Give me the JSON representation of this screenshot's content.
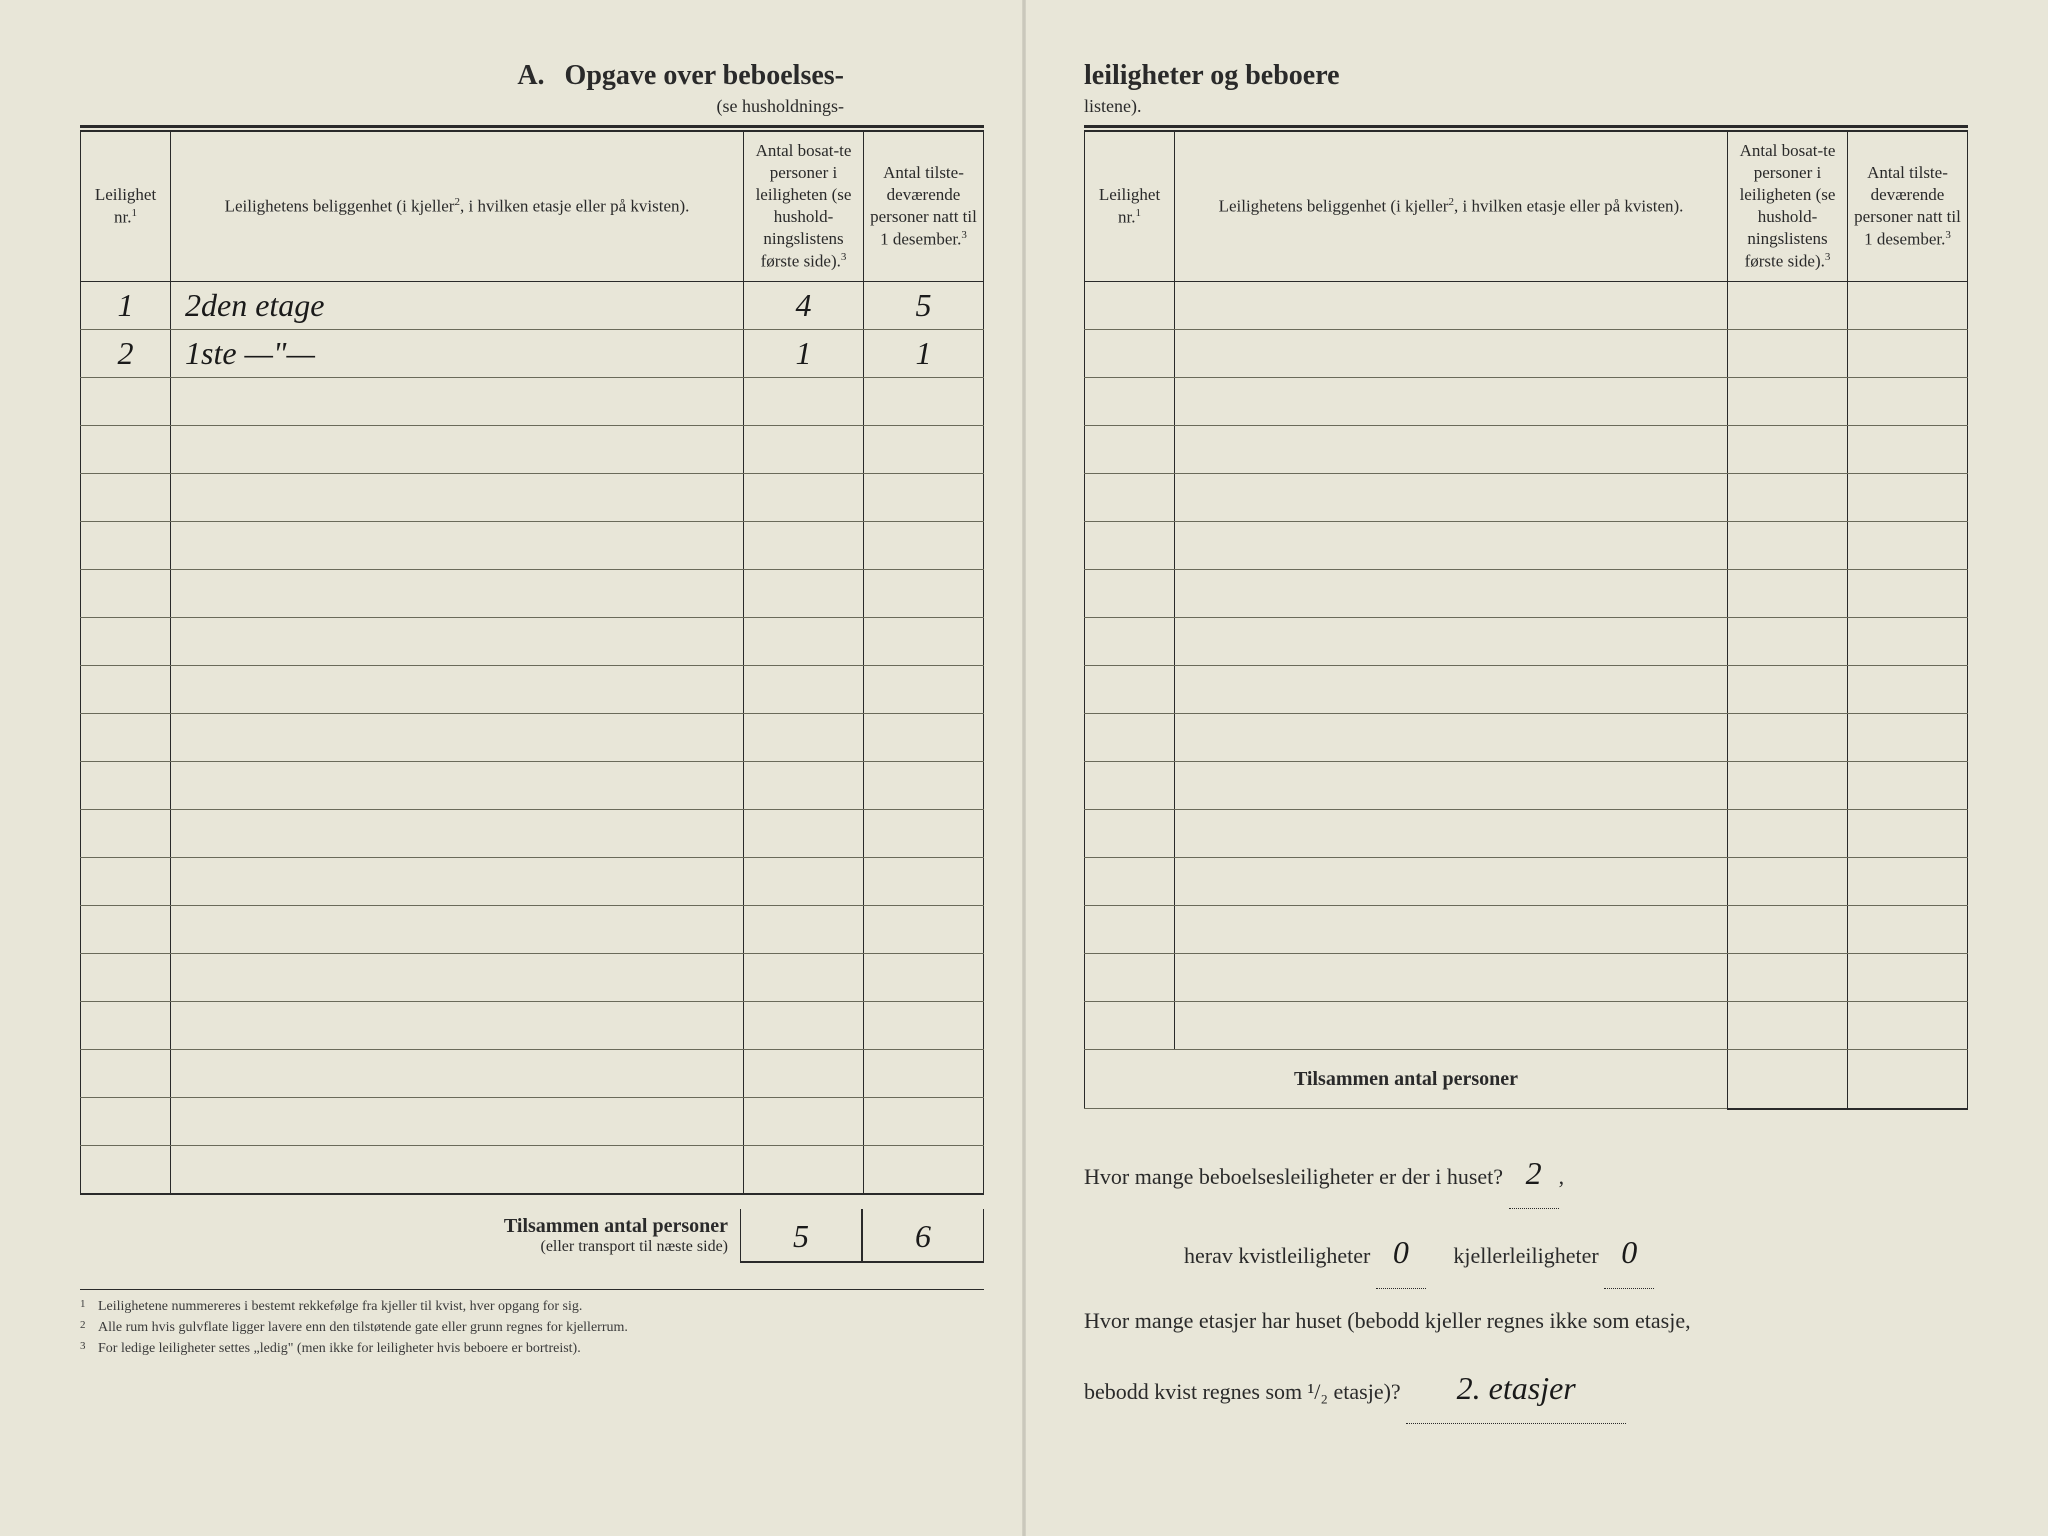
{
  "colors": {
    "paper": "#e8e6d8",
    "ink": "#2a2a2a",
    "rule": "#6a6a5a",
    "handwriting": "#1a1a1a"
  },
  "left": {
    "sectionLetter": "A.",
    "title": "Opgave over beboelses-",
    "subtitle": "(se husholdnings-",
    "headers": {
      "col1": "Leilighet nr.",
      "col1_sup": "1",
      "col2": "Leilighetens beliggenhet (i kjeller",
      "col2_sup": "2",
      "col2b": ", i hvilken etasje eller på kvisten).",
      "col3": "Antal bosat-te personer i leiligheten (se hushold-ningslistens første side).",
      "col3_sup": "3",
      "col4": "Antal tilste-deværende personer natt til 1 desember.",
      "col4_sup": "3"
    },
    "rows": [
      {
        "nr": "1",
        "loc": "2den etage",
        "bosatte": "4",
        "tilstede": "5"
      },
      {
        "nr": "2",
        "loc": "1ste —\"—",
        "bosatte": "1",
        "tilstede": "1"
      }
    ],
    "emptyRows": 17,
    "totals": {
      "labelBold": "Tilsammen antal personer",
      "labelSmall": "(eller transport til næste side)",
      "bosatte": "5",
      "tilstede": "6"
    },
    "footnotes": [
      {
        "n": "1",
        "text": "Leilighetene nummereres i bestemt rekkefølge fra kjeller til kvist, hver opgang for sig."
      },
      {
        "n": "2",
        "text": "Alle rum hvis gulvflate ligger lavere enn den tilstøtende gate eller grunn regnes for kjellerrum."
      },
      {
        "n": "3",
        "text": "For ledige leiligheter settes „ledig\" (men ikke for leiligheter hvis beboere er bortreist)."
      }
    ]
  },
  "right": {
    "title": "leiligheter og beboere",
    "subtitle": "listene).",
    "headers": {
      "col1": "Leilighet nr.",
      "col1_sup": "1",
      "col2": "Leilighetens beliggenhet (i kjeller",
      "col2_sup": "2",
      "col2b": ", i hvilken etasje eller på kvisten).",
      "col3": "Antal bosat-te personer i leiligheten (se hushold-ningslistens første side).",
      "col3_sup": "3",
      "col4": "Antal tilste-deværende personer natt til 1 desember.",
      "col4_sup": "3"
    },
    "emptyRows": 16,
    "totalsLabel": "Tilsammen antal personer",
    "questions": {
      "q1a": "Hvor mange beboelsesleiligheter er der i huset?",
      "q1ans": "2",
      "q2a": "herav kvistleiligheter",
      "q2ans": "0",
      "q2b": "kjellerleiligheter",
      "q2bans": "0",
      "q3a": "Hvor mange etasjer har huset (bebodd kjeller regnes ikke som etasje,",
      "q3b": "bebodd kvist regnes som ¹/₂ etasje)?",
      "q3ans": "2. etasjer"
    }
  }
}
